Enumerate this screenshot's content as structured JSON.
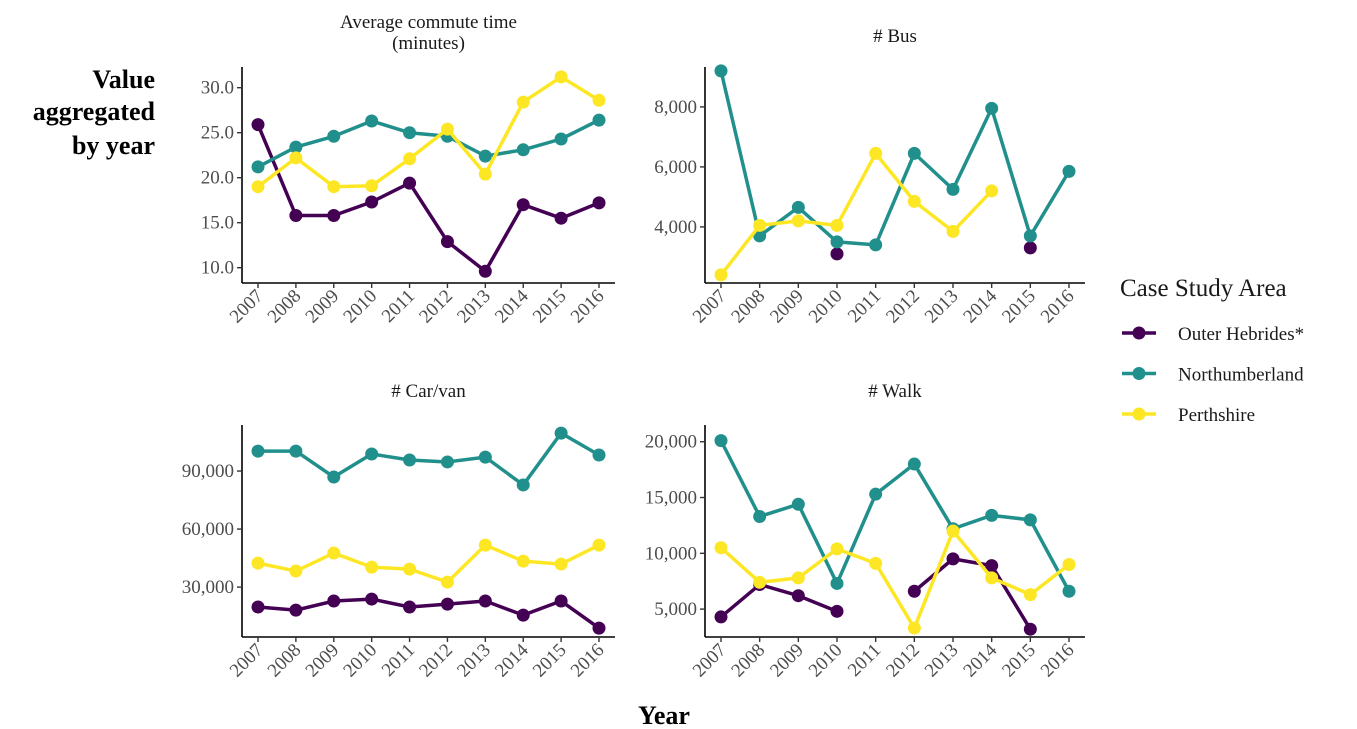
{
  "y_label": [
    "Value",
    "aggregated",
    "by year"
  ],
  "x_label": "Year",
  "legend": {
    "title": "Case Study Area"
  },
  "chart_data": [
    {
      "type": "line",
      "title": "Average commute time\n(minutes)",
      "categories": [
        "2007",
        "2008",
        "2009",
        "2010",
        "2011",
        "2012",
        "2013",
        "2014",
        "2015",
        "2016"
      ],
      "ylim": [
        8.3,
        32.3
      ],
      "yticks": [
        {
          "value": 10,
          "label": "10.0"
        },
        {
          "value": 15,
          "label": "15.0"
        },
        {
          "value": 20,
          "label": "20.0"
        },
        {
          "value": 25,
          "label": "25.0"
        },
        {
          "value": 30,
          "label": "30.0"
        }
      ],
      "series": [
        {
          "name": "Outer Hebrides*",
          "color": "#440154",
          "values": [
            25.9,
            15.8,
            15.8,
            17.3,
            19.4,
            12.9,
            9.6,
            17.0,
            15.5,
            17.2
          ]
        },
        {
          "name": "Northumberland",
          "color": "#21908C",
          "values": [
            21.2,
            23.4,
            24.6,
            26.3,
            25.0,
            24.6,
            22.4,
            23.1,
            24.3,
            26.4
          ]
        },
        {
          "name": "Perthshire",
          "color": "#FDE725",
          "values": [
            19.0,
            22.2,
            19.0,
            19.1,
            22.1,
            25.4,
            20.4,
            28.4,
            31.2,
            28.6
          ]
        }
      ]
    },
    {
      "type": "line",
      "title": "# Bus",
      "categories": [
        "2007",
        "2008",
        "2009",
        "2010",
        "2011",
        "2012",
        "2013",
        "2014",
        "2015",
        "2016"
      ],
      "ylim": [
        2130,
        9330
      ],
      "yticks": [
        {
          "value": 4000,
          "label": "4,000"
        },
        {
          "value": 6000,
          "label": "6,000"
        },
        {
          "value": 8000,
          "label": "8,000"
        }
      ],
      "series": [
        {
          "name": "Outer Hebrides*",
          "color": "#440154",
          "values": [
            null,
            null,
            null,
            3100,
            null,
            null,
            null,
            null,
            3300,
            null
          ]
        },
        {
          "name": "Northumberland",
          "color": "#21908C",
          "values": [
            9200,
            3700,
            4650,
            3500,
            3400,
            6450,
            5250,
            7950,
            3700,
            5850
          ]
        },
        {
          "name": "Perthshire",
          "color": "#FDE725",
          "values": [
            2400,
            4050,
            4200,
            4050,
            6450,
            4850,
            3850,
            5200,
            null,
            null
          ]
        }
      ]
    },
    {
      "type": "line",
      "title": "# Car/van",
      "categories": [
        "2007",
        "2008",
        "2009",
        "2010",
        "2011",
        "2012",
        "2013",
        "2014",
        "2015",
        "2016"
      ],
      "ylim": [
        4200,
        113800
      ],
      "yticks": [
        {
          "value": 30000,
          "label": "30,000"
        },
        {
          "value": 60000,
          "label": "60,000"
        },
        {
          "value": 90000,
          "label": "90,000"
        }
      ],
      "series": [
        {
          "name": "Outer Hebrides*",
          "color": "#440154",
          "values": [
            19700,
            18100,
            22800,
            23800,
            19700,
            21200,
            22800,
            15500,
            22800,
            8800
          ]
        },
        {
          "name": "Northumberland",
          "color": "#21908C",
          "values": [
            100300,
            100300,
            86900,
            98800,
            95700,
            94700,
            97200,
            82800,
            109600,
            98300
          ]
        },
        {
          "name": "Perthshire",
          "color": "#FDE725",
          "values": [
            42400,
            38300,
            47600,
            40300,
            39300,
            32600,
            51700,
            43400,
            41900,
            51700
          ]
        }
      ]
    },
    {
      "type": "line",
      "title": "# Walk",
      "categories": [
        "2007",
        "2008",
        "2009",
        "2010",
        "2011",
        "2012",
        "2013",
        "2014",
        "2015",
        "2016"
      ],
      "ylim": [
        2500,
        21500
      ],
      "yticks": [
        {
          "value": 5000,
          "label": "5,000"
        },
        {
          "value": 10000,
          "label": "10,000"
        },
        {
          "value": 15000,
          "label": "15,000"
        },
        {
          "value": 20000,
          "label": "20,000"
        }
      ],
      "series": [
        {
          "name": "Outer Hebrides*",
          "color": "#440154",
          "values": [
            4300,
            7200,
            6200,
            4800,
            null,
            6600,
            9500,
            8900,
            3200,
            null
          ]
        },
        {
          "name": "Northumberland",
          "color": "#21908C",
          "values": [
            20100,
            13300,
            14400,
            7300,
            15300,
            18000,
            12200,
            13400,
            13000,
            6600
          ]
        },
        {
          "name": "Perthshire",
          "color": "#FDE725",
          "values": [
            10500,
            7400,
            7800,
            10400,
            9100,
            3300,
            12000,
            7800,
            6300,
            9000
          ]
        }
      ]
    }
  ]
}
